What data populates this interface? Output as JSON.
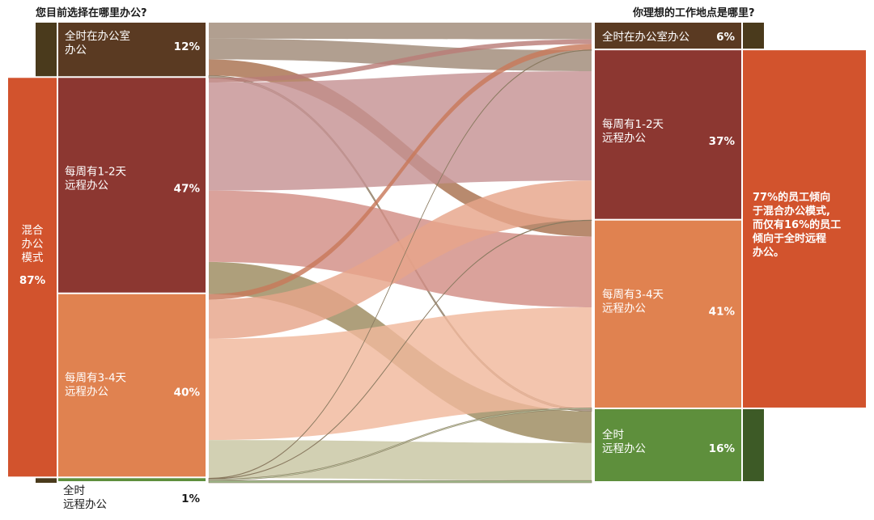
{
  "chart_data": {
    "type": "sankey",
    "left_title": "您目前选择在哪里办公?",
    "right_title": "你理想的工作地点是哪里?",
    "left_nodes": [
      {
        "id": "office",
        "lines": [
          "全时在办公室",
          "办公"
        ],
        "pct_label": "12%",
        "value": 12,
        "color": "#5a3a22"
      },
      {
        "id": "h12",
        "lines": [
          "每周有1-2天",
          "远程办公"
        ],
        "pct_label": "47%",
        "value": 47,
        "color": "#8c3731"
      },
      {
        "id": "h34",
        "lines": [
          "每周有3-4天",
          "远程办公"
        ],
        "pct_label": "40%",
        "value": 40,
        "color": "#e08250"
      },
      {
        "id": "remote",
        "lines": [
          "全时",
          "远程办公"
        ],
        "pct_label": "1%",
        "value": 1,
        "color": "#5e8f3c"
      }
    ],
    "right_nodes": [
      {
        "id": "office",
        "lines": [
          "全时在办公室办公"
        ],
        "pct_label": "6%",
        "value": 6,
        "color": "#5a3a22"
      },
      {
        "id": "h12",
        "lines": [
          "每周有1-2天",
          "远程办公"
        ],
        "pct_label": "37%",
        "value": 37,
        "color": "#8c3731"
      },
      {
        "id": "h34",
        "lines": [
          "每周有3-4天",
          "远程办公"
        ],
        "pct_label": "41%",
        "value": 41,
        "color": "#e08250"
      },
      {
        "id": "remote",
        "lines": [
          "全时",
          "远程办公"
        ],
        "pct_label": "16%",
        "value": 16,
        "color": "#5e8f3c"
      }
    ],
    "left_group": {
      "lines": [
        "混合",
        "办公",
        "模式"
      ],
      "pct_label": "87%",
      "color": "#d2532d"
    },
    "right_note": {
      "lines": [
        "77%的员工倾向",
        "于混合办公模式,",
        "而仅有16%的员工",
        "倾向于全时远程",
        "办公。"
      ],
      "color": "#d2532d"
    },
    "left_bracket_color": "#4a3a1c",
    "right_bracket_color": "#3d5a26",
    "flows": [
      {
        "from": "office",
        "to": "office",
        "value": 3.5,
        "color": "#a08a78"
      },
      {
        "from": "office",
        "to": "h12",
        "value": 4.5,
        "color": "#a08a78"
      },
      {
        "from": "office",
        "to": "h34",
        "value": 3.5,
        "color": "#a8704e"
      },
      {
        "from": "office",
        "to": "remote",
        "value": 0.5,
        "color": "#a08a78"
      },
      {
        "from": "h12",
        "to": "office",
        "value": 1,
        "color": "#b97c77"
      },
      {
        "from": "h12",
        "to": "h12",
        "value": 23.5,
        "color": "#c69394"
      },
      {
        "from": "h12",
        "to": "h34",
        "value": 15.5,
        "color": "#d28e85"
      },
      {
        "from": "h12",
        "to": "remote",
        "value": 7,
        "color": "#9c8a5e"
      },
      {
        "from": "h34",
        "to": "office",
        "value": 1.2,
        "color": "#c8795a"
      },
      {
        "from": "h34",
        "to": "h12",
        "value": 8.5,
        "color": "#e6a58a"
      },
      {
        "from": "h34",
        "to": "h34",
        "value": 22,
        "color": "#f0b89c"
      },
      {
        "from": "h34",
        "to": "remote",
        "value": 8.3,
        "color": "#c8c6a2"
      },
      {
        "from": "remote",
        "to": "office",
        "value": 0.1,
        "color": "#8a7a60"
      },
      {
        "from": "remote",
        "to": "h12",
        "value": 0.1,
        "color": "#8a7a60"
      },
      {
        "from": "remote",
        "to": "h34",
        "value": 0.3,
        "color": "#b8c4a0"
      },
      {
        "from": "remote",
        "to": "remote",
        "value": 0.5,
        "color": "#8aa872"
      }
    ]
  }
}
